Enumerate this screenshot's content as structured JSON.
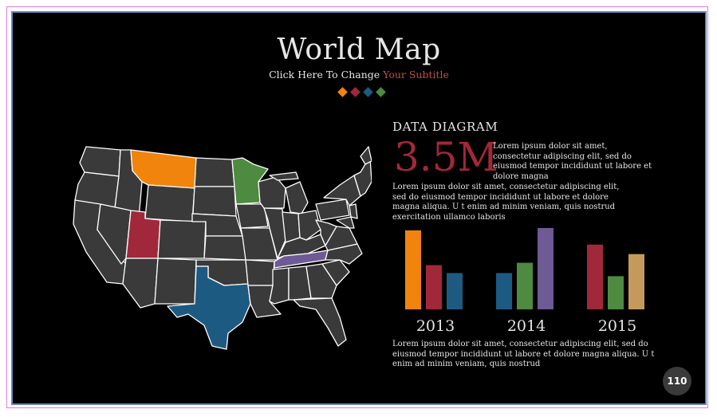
{
  "slide": {
    "title": "World Map",
    "subtitle_prefix": "Click Here To Change ",
    "subtitle_accent": "Your Subtitle",
    "diamond_colors": [
      "#f0840c",
      "#a1283a",
      "#1d5a82",
      "#4e8a3f"
    ],
    "page_number": "110"
  },
  "map": {
    "highlighted_states": [
      {
        "name": "Montana",
        "color": "#f0840c"
      },
      {
        "name": "Minnesota",
        "color": "#4e8a3f"
      },
      {
        "name": "Utah",
        "color": "#a1283a"
      },
      {
        "name": "Texas",
        "color": "#1d5a82"
      },
      {
        "name": "Tennessee",
        "color": "#6e5a94"
      }
    ],
    "default_state_color": "#3a3a3a"
  },
  "data_diagram": {
    "heading": "DATA  DIAGRAM",
    "big_number": "3.5M",
    "text_1": "Lorem ipsum dolor sit amet, consectetur adipiscing elit, sed do eiusmod tempor incididunt ut labore et dolore magna",
    "text_2": "Lorem ipsum dolor sit amet, consectetur adipiscing elit, sed do eiusmod tempor incididunt ut labore et dolore magna aliqua. U t enim ad minim veniam, quis nostrud exercitation ullamco laboris",
    "text_3": "Lorem ipsum dolor sit amet, consectetur adipiscing elit, sed do eiusmod tempor incididunt ut labore et dolore magna aliqua. U t enim ad minim veniam, quis nostrud"
  },
  "chart_data": {
    "type": "bar",
    "categories": [
      "2013",
      "2014",
      "2015"
    ],
    "series": [
      {
        "color": "#f0840c",
        "values": [
          100,
          null,
          null
        ]
      },
      {
        "color": "#a1283a",
        "values": [
          56,
          null,
          82
        ]
      },
      {
        "color": "#1d5a82",
        "values": [
          46,
          46,
          null
        ]
      },
      {
        "color": "#4e8a3f",
        "values": [
          null,
          59,
          42
        ]
      },
      {
        "color": "#6e5a94",
        "values": [
          null,
          103,
          null
        ]
      },
      {
        "color": "#c49a5c",
        "values": [
          null,
          null,
          70
        ]
      }
    ],
    "title": "",
    "xlabel": "",
    "ylabel": "",
    "ylim": [
      0,
      105
    ],
    "grid": false
  }
}
